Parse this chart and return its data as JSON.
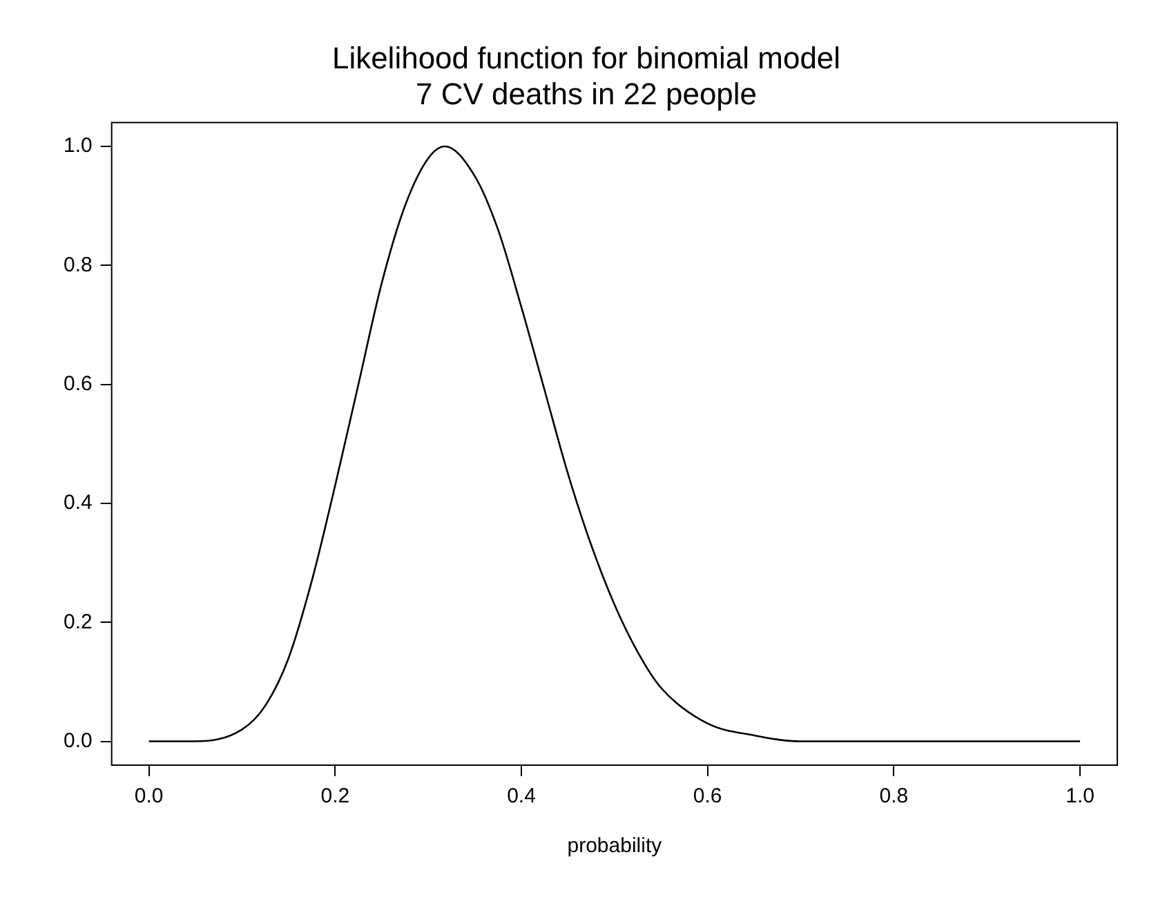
{
  "chart_data": {
    "type": "line",
    "title": "Likelihood function for binomial model",
    "subtitle": "7 CV deaths in 22 people",
    "xlabel": "probability",
    "x": [
      0,
      0.05,
      0.1,
      0.125,
      0.15,
      0.175,
      0.2,
      0.225,
      0.25,
      0.275,
      0.3,
      0.318,
      0.35,
      0.375,
      0.4,
      0.425,
      0.45,
      0.475,
      0.5,
      0.525,
      0.55,
      0.6,
      0.65,
      0.7,
      0.75,
      0.8,
      0.9,
      1
    ],
    "series": [
      {
        "color": "#000000",
        "values": [
          0,
          0,
          0.02,
          0.06,
          0.14,
          0.27,
          0.43,
          0.6,
          0.77,
          0.9,
          0.98,
          1,
          0.95,
          0.86,
          0.73,
          0.59,
          0.45,
          0.33,
          0.23,
          0.15,
          0.09,
          0.03,
          0.01,
          0,
          0,
          0,
          0,
          0
        ]
      }
    ],
    "xlim": [
      -0.04,
      1.04
    ],
    "ylim": [
      -0.04,
      1.04
    ],
    "xticks": [
      {
        "value": 0,
        "label": "0.0"
      },
      0.2,
      0.4,
      0.6,
      0.8,
      {
        "value": 1,
        "label": "1.0"
      }
    ],
    "yticks": [
      {
        "value": 0,
        "label": "0.0"
      },
      0.2,
      0.4,
      0.6,
      0.8,
      {
        "value": 1,
        "label": "1.0"
      }
    ],
    "grid": false,
    "legend": false,
    "marker": "none",
    "line_style": "solid"
  }
}
